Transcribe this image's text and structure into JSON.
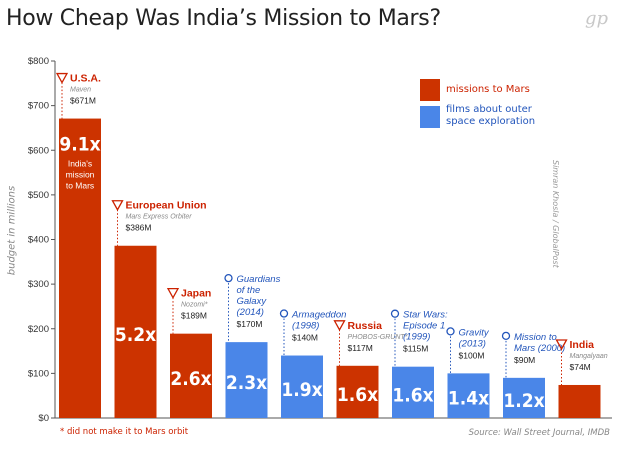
{
  "title": "How Cheap Was India’s Mission to Mars?",
  "logo": "gp",
  "colors": {
    "mars": "#cc3300",
    "film": "#4a86e8",
    "mars_text": "#cc2200",
    "film_text": "#2255bb"
  },
  "legend": {
    "mars": "missions to Mars",
    "film": "films about outer space exploration"
  },
  "credit": "Simran Khosla / GlobalPost",
  "footnote": "* did not make it to Mars orbit",
  "source": "Source: Wall Street Journal, IMDB",
  "chart_data": {
    "type": "bar",
    "ylabel": "budget in millions",
    "ylim": [
      0,
      800
    ],
    "yticks": [
      "$0",
      "$100",
      "$200",
      "$300",
      "$400",
      "$500",
      "$600",
      "$700",
      "$800"
    ],
    "bars": [
      {
        "name": "U.S.A.",
        "sub": "Maven",
        "amount": "$671M",
        "value": 671,
        "kind": "mars",
        "multiplier": "9.1x",
        "note": "India's mission to Mars"
      },
      {
        "name": "European Union",
        "sub": "Mars Express Orbiter",
        "amount": "$386M",
        "value": 386,
        "kind": "mars",
        "multiplier": "5.2x"
      },
      {
        "name": "Japan",
        "sub": "Nozomi*",
        "amount": "$189M",
        "value": 189,
        "kind": "mars",
        "multiplier": "2.6x"
      },
      {
        "name": "Guardians of the Galaxy (2014)",
        "sub": "",
        "amount": "$170M",
        "value": 170,
        "kind": "film",
        "multiplier": "2.3x"
      },
      {
        "name": "Armageddon (1998)",
        "sub": "",
        "amount": "$140M",
        "value": 140,
        "kind": "film",
        "multiplier": "1.9x"
      },
      {
        "name": "Russia",
        "sub": "PHOBOS-GRUNT*",
        "amount": "$117M",
        "value": 117,
        "kind": "mars",
        "multiplier": "1.6x"
      },
      {
        "name": "Star Wars: Episode 1 (1999)",
        "sub": "",
        "amount": "$115M",
        "value": 115,
        "kind": "film",
        "multiplier": "1.6x"
      },
      {
        "name": "Gravity (2013)",
        "sub": "",
        "amount": "$100M",
        "value": 100,
        "kind": "film",
        "multiplier": "1.4x"
      },
      {
        "name": "Mission to Mars (2000)",
        "sub": "",
        "amount": "$90M",
        "value": 90,
        "kind": "film",
        "multiplier": "1.2x"
      },
      {
        "name": "India",
        "sub": "Mangalyaan",
        "amount": "$74M",
        "value": 74,
        "kind": "mars",
        "multiplier": ""
      }
    ]
  }
}
